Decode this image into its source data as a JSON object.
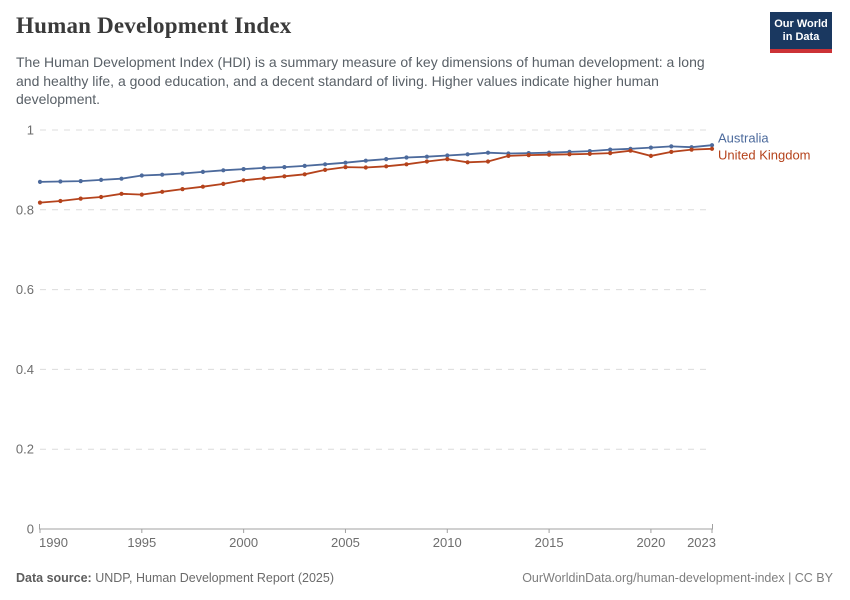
{
  "header": {
    "title": "Human Development Index",
    "subtitle_lines": [
      "The Human Development Index (HDI) is a summary measure of key dimensions of human development: a long",
      "and healthy life, a good education, and a decent standard of living. Higher values indicate higher human",
      "development."
    ],
    "logo": {
      "line1": "Our World",
      "line2": "in Data",
      "bg_color": "#1a3860",
      "bar_color": "#cc3236"
    }
  },
  "footer": {
    "source_label": "Data source:",
    "source_text": " UNDP, Human Development Report (2025)",
    "attribution": "OurWorldinData.org/human-development-index | CC BY"
  },
  "chart_data": {
    "type": "line",
    "title": "Human Development Index",
    "xlabel": "",
    "ylabel": "",
    "x": [
      1990,
      1991,
      1992,
      1993,
      1994,
      1995,
      1996,
      1997,
      1998,
      1999,
      2000,
      2001,
      2002,
      2003,
      2004,
      2005,
      2006,
      2007,
      2008,
      2009,
      2010,
      2011,
      2012,
      2013,
      2014,
      2015,
      2016,
      2017,
      2018,
      2019,
      2020,
      2021,
      2022,
      2023
    ],
    "series": [
      {
        "name": "Australia",
        "color": "#4C6A9C",
        "values": [
          0.87,
          0.871,
          0.872,
          0.875,
          0.878,
          0.886,
          0.888,
          0.891,
          0.895,
          0.899,
          0.902,
          0.905,
          0.907,
          0.91,
          0.914,
          0.918,
          0.923,
          0.927,
          0.931,
          0.933,
          0.936,
          0.939,
          0.943,
          0.941,
          0.942,
          0.943,
          0.945,
          0.947,
          0.951,
          0.953,
          0.956,
          0.959,
          0.957,
          0.962
        ]
      },
      {
        "name": "United Kingdom",
        "color": "#B5431C",
        "values": [
          0.818,
          0.822,
          0.828,
          0.832,
          0.84,
          0.838,
          0.845,
          0.852,
          0.858,
          0.865,
          0.874,
          0.879,
          0.884,
          0.889,
          0.9,
          0.907,
          0.906,
          0.909,
          0.914,
          0.921,
          0.927,
          0.919,
          0.921,
          0.935,
          0.937,
          0.938,
          0.939,
          0.94,
          0.942,
          0.948,
          0.935,
          0.945,
          0.951,
          0.953
        ]
      }
    ],
    "ylim": [
      0,
      1
    ],
    "yticks": [
      0,
      0.2,
      0.4,
      0.6,
      0.8,
      1
    ],
    "ytick_labels": [
      "0",
      "0.2",
      "0.4",
      "0.6",
      "0.8",
      "1"
    ],
    "xticks": [
      1990,
      1995,
      2000,
      2005,
      2010,
      2015,
      2020,
      2023
    ],
    "grid": "horizontal-dashed",
    "legend_position": "right-of-line-ends",
    "colors": {
      "grid": "#dcdcdc",
      "axis": "#a0a0a0",
      "tick_text": "#6e6e6e"
    }
  }
}
